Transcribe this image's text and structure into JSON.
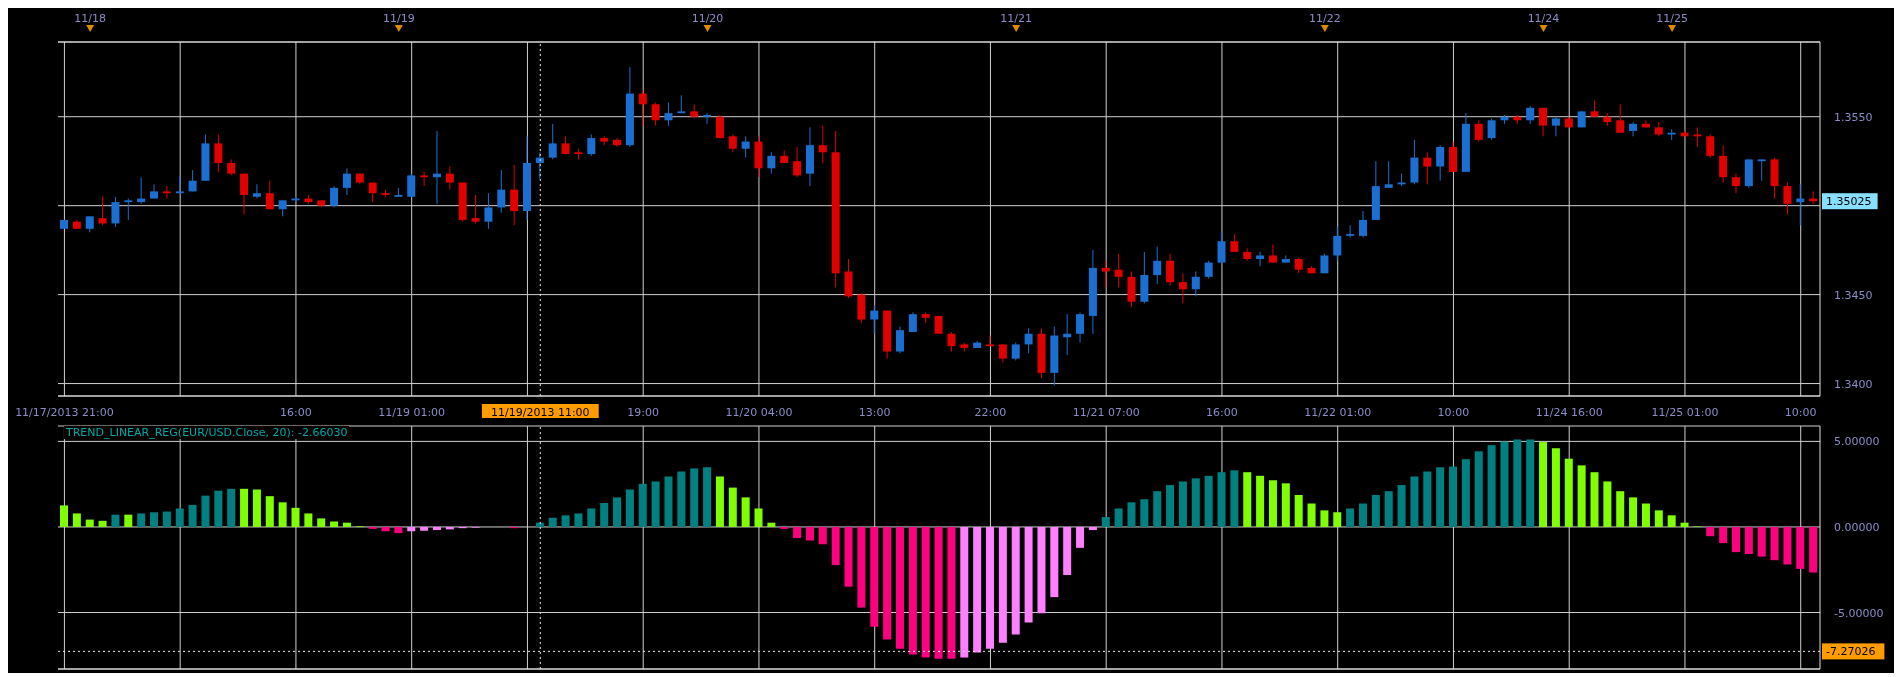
{
  "chart_data": [
    {
      "type": "candlestick",
      "categories": [
        "11/17/2013 21:00",
        null,
        null,
        null,
        null,
        null,
        null,
        null,
        null,
        null,
        null,
        null,
        null,
        null,
        null,
        null,
        null,
        null,
        "16:00",
        null,
        null,
        null,
        null,
        null,
        null,
        null,
        null,
        "11/19 01:00",
        null,
        null,
        null,
        null,
        null,
        null,
        null,
        null,
        null,
        "11/19/2013 11:00",
        null,
        null,
        null,
        null,
        null,
        null,
        null,
        "19:00",
        null,
        null,
        null,
        null,
        null,
        null,
        null,
        null,
        "11/20 04:00",
        null,
        null,
        null,
        null,
        null,
        null,
        null,
        null,
        "13:00",
        null,
        null,
        null,
        null,
        null,
        null,
        null,
        null,
        "22:00",
        null,
        null,
        null,
        null,
        null,
        null,
        null,
        null,
        "11/21 07:00",
        null,
        null,
        null,
        null,
        null,
        null,
        null,
        null,
        "16:00",
        null,
        null,
        null,
        null,
        null,
        null,
        null,
        null,
        "11/22 01:00",
        null,
        null,
        null,
        null,
        null,
        null,
        null,
        null,
        "10:00",
        null,
        null,
        null,
        null,
        null,
        null,
        null,
        null,
        "11/24 16:00",
        null,
        null,
        null,
        null,
        null,
        null,
        null,
        null,
        "11/25 01:00",
        null,
        null,
        null,
        null,
        null,
        null,
        null,
        null,
        "10:00",
        null
      ],
      "ohlc": [
        [
          1.3487,
          1.3492,
          1.3487,
          1.3492
        ],
        [
          1.3491,
          1.3492,
          1.3487,
          1.3487
        ],
        [
          1.3487,
          1.3494,
          1.3485,
          1.3494
        ],
        [
          1.3493,
          1.3505,
          1.3489,
          1.349
        ],
        [
          1.349,
          1.3505,
          1.3488,
          1.3502
        ],
        [
          1.3502,
          1.3504,
          1.3492,
          1.3503
        ],
        [
          1.3502,
          1.3516,
          1.3501,
          1.3504
        ],
        [
          1.3504,
          1.3512,
          1.3504,
          1.3508
        ],
        [
          1.3508,
          1.3511,
          1.3504,
          1.3507
        ],
        [
          1.3507,
          1.3517,
          1.3507,
          1.3508
        ],
        [
          1.3508,
          1.352,
          1.3508,
          1.3514
        ],
        [
          1.3514,
          1.354,
          1.3514,
          1.3535
        ],
        [
          1.3535,
          1.354,
          1.3519,
          1.3524
        ],
        [
          1.3524,
          1.3526,
          1.3517,
          1.3518
        ],
        [
          1.3518,
          1.3518,
          1.3495,
          1.3506
        ],
        [
          1.3505,
          1.3512,
          1.3504,
          1.3507
        ],
        [
          1.3507,
          1.3514,
          1.3498,
          1.3498
        ],
        [
          1.3498,
          1.3503,
          1.3494,
          1.3503
        ],
        [
          1.3503,
          1.3505,
          1.3502,
          1.3504
        ],
        [
          1.3504,
          1.3506,
          1.3501,
          1.3502
        ],
        [
          1.3503,
          1.3503,
          1.3499,
          1.35
        ],
        [
          1.35,
          1.3511,
          1.3499,
          1.351
        ],
        [
          1.351,
          1.3521,
          1.3506,
          1.3518
        ],
        [
          1.3518,
          1.3518,
          1.3512,
          1.3513
        ],
        [
          1.3513,
          1.3513,
          1.3502,
          1.3507
        ],
        [
          1.3507,
          1.3509,
          1.3505,
          1.3506
        ],
        [
          1.3505,
          1.351,
          1.3505,
          1.3506
        ],
        [
          1.3505,
          1.3518,
          1.3505,
          1.3517
        ],
        [
          1.3517,
          1.3519,
          1.3511,
          1.3516
        ],
        [
          1.3516,
          1.3542,
          1.3501,
          1.3518
        ],
        [
          1.3518,
          1.3522,
          1.3509,
          1.3513
        ],
        [
          1.3513,
          1.3513,
          1.3491,
          1.3492
        ],
        [
          1.3493,
          1.3506,
          1.349,
          1.3491
        ],
        [
          1.3491,
          1.3507,
          1.3487,
          1.3499
        ],
        [
          1.3499,
          1.352,
          1.3496,
          1.3509
        ],
        [
          1.3509,
          1.3523,
          1.3489,
          1.3497
        ],
        [
          1.3497,
          1.3539,
          1.3492,
          1.3524
        ],
        [
          1.3524,
          1.353,
          1.3515,
          1.3527
        ],
        [
          1.3527,
          1.3546,
          1.3526,
          1.3535
        ],
        [
          1.3535,
          1.3539,
          1.3529,
          1.3529
        ],
        [
          1.353,
          1.3532,
          1.3526,
          1.3529
        ],
        [
          1.3529,
          1.354,
          1.3528,
          1.3538
        ],
        [
          1.3538,
          1.3539,
          1.3534,
          1.3536
        ],
        [
          1.3537,
          1.3538,
          1.3533,
          1.3534
        ],
        [
          1.3534,
          1.3578,
          1.3533,
          1.3563
        ],
        [
          1.3563,
          1.3565,
          1.3545,
          1.3557
        ],
        [
          1.3557,
          1.3558,
          1.3545,
          1.3548
        ],
        [
          1.3548,
          1.3558,
          1.3545,
          1.3552
        ],
        [
          1.3552,
          1.3562,
          1.3552,
          1.3553
        ],
        [
          1.3553,
          1.3557,
          1.3549,
          1.355
        ],
        [
          1.355,
          1.3552,
          1.3546,
          1.3551
        ],
        [
          1.355,
          1.3551,
          1.3538,
          1.3538
        ],
        [
          1.3539,
          1.354,
          1.353,
          1.3532
        ],
        [
          1.3532,
          1.3539,
          1.3527,
          1.3536
        ],
        [
          1.3536,
          1.3539,
          1.3516,
          1.3521
        ],
        [
          1.3521,
          1.353,
          1.3518,
          1.3528
        ],
        [
          1.3528,
          1.3531,
          1.3524,
          1.3524
        ],
        [
          1.3525,
          1.3533,
          1.3516,
          1.3517
        ],
        [
          1.3518,
          1.3544,
          1.3511,
          1.3534
        ],
        [
          1.3534,
          1.3545,
          1.3524,
          1.353
        ],
        [
          1.353,
          1.3542,
          1.3454,
          1.3462
        ],
        [
          1.3463,
          1.347,
          1.3448,
          1.3449
        ],
        [
          1.345,
          1.3451,
          1.3434,
          1.3436
        ],
        [
          1.3436,
          1.3444,
          1.3428,
          1.3441
        ],
        [
          1.3441,
          1.3441,
          1.3414,
          1.3418
        ],
        [
          1.3418,
          1.3432,
          1.3417,
          1.343
        ],
        [
          1.3429,
          1.344,
          1.3429,
          1.3439
        ],
        [
          1.3439,
          1.344,
          1.3434,
          1.3437
        ],
        [
          1.3438,
          1.3438,
          1.3428,
          1.3428
        ],
        [
          1.3428,
          1.3429,
          1.3418,
          1.3421
        ],
        [
          1.3422,
          1.3423,
          1.3418,
          1.342
        ],
        [
          1.342,
          1.3424,
          1.342,
          1.3423
        ],
        [
          1.3422,
          1.3427,
          1.3421,
          1.3421
        ],
        [
          1.3422,
          1.3422,
          1.3412,
          1.3414
        ],
        [
          1.3414,
          1.3423,
          1.3413,
          1.3422
        ],
        [
          1.3422,
          1.3431,
          1.3417,
          1.3428
        ],
        [
          1.3428,
          1.3431,
          1.3403,
          1.3406
        ],
        [
          1.3406,
          1.3432,
          1.3399,
          1.3427
        ],
        [
          1.3426,
          1.3439,
          1.3416,
          1.3428
        ],
        [
          1.3428,
          1.344,
          1.3423,
          1.3439
        ],
        [
          1.3438,
          1.3475,
          1.3428,
          1.3465
        ],
        [
          1.3465,
          1.3469,
          1.3454,
          1.3463
        ],
        [
          1.3464,
          1.3473,
          1.3454,
          1.346
        ],
        [
          1.346,
          1.3463,
          1.3443,
          1.3446
        ],
        [
          1.3446,
          1.3474,
          1.3445,
          1.3461
        ],
        [
          1.3461,
          1.3477,
          1.3456,
          1.3469
        ],
        [
          1.3469,
          1.3473,
          1.3455,
          1.3457
        ],
        [
          1.3457,
          1.3462,
          1.3445,
          1.3453
        ],
        [
          1.3453,
          1.3463,
          1.3449,
          1.346
        ],
        [
          1.346,
          1.3469,
          1.3459,
          1.3468
        ],
        [
          1.3468,
          1.3485,
          1.3467,
          1.348
        ],
        [
          1.348,
          1.3484,
          1.3474,
          1.3474
        ],
        [
          1.3474,
          1.3476,
          1.3469,
          1.347
        ],
        [
          1.347,
          1.3474,
          1.3466,
          1.3472
        ],
        [
          1.3472,
          1.3478,
          1.3468,
          1.3468
        ],
        [
          1.3468,
          1.3472,
          1.3468,
          1.347
        ],
        [
          1.347,
          1.3471,
          1.3462,
          1.3464
        ],
        [
          1.3465,
          1.3466,
          1.3462,
          1.3462
        ],
        [
          1.3462,
          1.3473,
          1.3462,
          1.3472
        ],
        [
          1.3472,
          1.3488,
          1.3469,
          1.3483
        ],
        [
          1.3483,
          1.3489,
          1.3482,
          1.3484
        ],
        [
          1.3483,
          1.3497,
          1.3482,
          1.3492
        ],
        [
          1.3492,
          1.3525,
          1.3492,
          1.3511
        ],
        [
          1.351,
          1.3525,
          1.351,
          1.3512
        ],
        [
          1.3512,
          1.3518,
          1.3511,
          1.3513
        ],
        [
          1.3513,
          1.3537,
          1.3512,
          1.3527
        ],
        [
          1.3527,
          1.353,
          1.3512,
          1.3522
        ],
        [
          1.3522,
          1.3534,
          1.3514,
          1.3533
        ],
        [
          1.3533,
          1.3536,
          1.3519,
          1.3519
        ],
        [
          1.3519,
          1.3552,
          1.3519,
          1.3546
        ],
        [
          1.3546,
          1.3548,
          1.3536,
          1.3537
        ],
        [
          1.3538,
          1.3549,
          1.3537,
          1.3548
        ],
        [
          1.3548,
          1.3551,
          1.3546,
          1.355
        ],
        [
          1.355,
          1.3551,
          1.3546,
          1.3548
        ],
        [
          1.3548,
          1.3556,
          1.3546,
          1.3555
        ],
        [
          1.3555,
          1.3555,
          1.3539,
          1.3545
        ],
        [
          1.3545,
          1.355,
          1.3539,
          1.3549
        ],
        [
          1.3549,
          1.355,
          1.3544,
          1.3544
        ],
        [
          1.3544,
          1.3553,
          1.3544,
          1.3553
        ],
        [
          1.3553,
          1.3559,
          1.355,
          1.355
        ],
        [
          1.355,
          1.3552,
          1.3545,
          1.3547
        ],
        [
          1.3548,
          1.3557,
          1.3541,
          1.3541
        ],
        [
          1.3542,
          1.3547,
          1.3539,
          1.3546
        ],
        [
          1.3546,
          1.3548,
          1.3544,
          1.3544
        ],
        [
          1.3544,
          1.3547,
          1.3539,
          1.354
        ],
        [
          1.354,
          1.3543,
          1.3537,
          1.3541
        ],
        [
          1.3541,
          1.3542,
          1.3539,
          1.3539
        ],
        [
          1.354,
          1.3544,
          1.3533,
          1.3539
        ],
        [
          1.3539,
          1.354,
          1.3527,
          1.3528
        ],
        [
          1.3528,
          1.3534,
          1.3513,
          1.3516
        ],
        [
          1.3516,
          1.3518,
          1.3507,
          1.3511
        ],
        [
          1.3511,
          1.3526,
          1.351,
          1.3526
        ],
        [
          1.3525,
          1.3526,
          1.3514,
          1.3526
        ],
        [
          1.3526,
          1.3527,
          1.3504,
          1.3511
        ],
        [
          1.3511,
          1.3513,
          1.3495,
          1.3501
        ],
        [
          1.3502,
          1.3512,
          1.3489,
          1.3504
        ],
        [
          1.3504,
          1.3508,
          1.3501,
          1.35025
        ]
      ],
      "colors": [
        "#1a6fd1",
        "#e00000",
        "#1a6fd1",
        "#e00000",
        "#1a6fd1",
        "#1a6fd1",
        "#1a6fd1",
        "#1a6fd1",
        "#e00000",
        "#1a6fd1",
        "#1a6fd1",
        "#1a6fd1",
        "#e00000",
        "#e00000",
        "#e00000",
        "#1a6fd1",
        "#e00000",
        "#1a6fd1",
        "#1a6fd1",
        "#e00000",
        "#e00000",
        "#1a6fd1",
        "#1a6fd1",
        "#e00000",
        "#e00000",
        "#e00000",
        "#1a6fd1",
        "#1a6fd1",
        "#e00000",
        "#1a6fd1",
        "#e00000",
        "#e00000",
        "#e00000",
        "#1a6fd1",
        "#1a6fd1",
        "#e00000",
        "#1a6fd1",
        "#1a6fd1",
        "#1a6fd1",
        "#e00000",
        "#e00000",
        "#1a6fd1",
        "#e00000",
        "#e00000",
        "#1a6fd1",
        "#e00000",
        "#e00000",
        "#1a6fd1",
        "#1a6fd1",
        "#e00000",
        "#1a6fd1",
        "#e00000",
        "#e00000",
        "#1a6fd1",
        "#e00000",
        "#1a6fd1",
        "#e00000",
        "#e00000",
        "#1a6fd1",
        "#e00000",
        "#e00000",
        "#e00000",
        "#e00000",
        "#1a6fd1",
        "#e00000",
        "#1a6fd1",
        "#1a6fd1",
        "#e00000",
        "#e00000",
        "#e00000",
        "#e00000",
        "#1a6fd1",
        "#e00000",
        "#e00000",
        "#1a6fd1",
        "#1a6fd1",
        "#e00000",
        "#1a6fd1",
        "#1a6fd1",
        "#1a6fd1",
        "#1a6fd1",
        "#e00000",
        "#e00000",
        "#e00000",
        "#1a6fd1",
        "#1a6fd1",
        "#e00000",
        "#e00000",
        "#1a6fd1",
        "#1a6fd1",
        "#1a6fd1",
        "#e00000",
        "#e00000",
        "#1a6fd1",
        "#e00000",
        "#1a6fd1",
        "#e00000",
        "#e00000",
        "#1a6fd1",
        "#1a6fd1",
        "#1a6fd1",
        "#1a6fd1",
        "#1a6fd1",
        "#1a6fd1",
        "#1a6fd1",
        "#1a6fd1",
        "#e00000",
        "#1a6fd1",
        "#e00000",
        "#1a6fd1",
        "#e00000",
        "#1a6fd1",
        "#1a6fd1",
        "#e00000",
        "#1a6fd1",
        "#e00000",
        "#1a6fd1",
        "#e00000",
        "#1a6fd1",
        "#e00000",
        "#e00000",
        "#e00000",
        "#1a6fd1",
        "#e00000",
        "#e00000",
        "#1a6fd1",
        "#e00000",
        "#e00000",
        "#e00000",
        "#e00000",
        "#e00000",
        "#1a6fd1",
        "#1a6fd1",
        "#e00000",
        "#e00000",
        "#1a6fd1",
        "#e00000"
      ],
      "ylim": [
        1.3393,
        1.3592
      ],
      "yticks": [
        {
          "value": 1.34,
          "label": "1.3400"
        },
        {
          "value": 1.345,
          "label": "1.3450"
        },
        {
          "value": 1.35,
          "label": null
        },
        {
          "value": 1.355,
          "label": "1.3550"
        }
      ],
      "grid": true,
      "ref_lines": [
        {
          "axis": "x",
          "value": "11/19/2013 11:00",
          "line_style": "dotted"
        }
      ],
      "annotations": [
        "11/18",
        "11/19",
        "11/20",
        "11/21",
        "11/22",
        "11/24",
        "11/25",
        "1.35025"
      ]
    },
    {
      "type": "bar",
      "title": "TREND_LINEAR_REG(EUR/USD.Close, 20): -2.66030",
      "categories": [
        "11/17/2013 21:00",
        null,
        null,
        null,
        null,
        null,
        null,
        null,
        null,
        null,
        null,
        null,
        null,
        null,
        null,
        null,
        null,
        null,
        "16:00",
        null,
        null,
        null,
        null,
        null,
        null,
        null,
        null,
        "11/19 01:00",
        null,
        null,
        null,
        null,
        null,
        null,
        null,
        null,
        null,
        "11/19/2013 11:00",
        null,
        null,
        null,
        null,
        null,
        null,
        null,
        "19:00",
        null,
        null,
        null,
        null,
        null,
        null,
        null,
        null,
        "11/20 04:00",
        null,
        null,
        null,
        null,
        null,
        null,
        null,
        null,
        "13:00",
        null,
        null,
        null,
        null,
        null,
        null,
        null,
        null,
        "22:00",
        null,
        null,
        null,
        null,
        null,
        null,
        null,
        null,
        "11/21 07:00",
        null,
        null,
        null,
        null,
        null,
        null,
        null,
        null,
        "16:00",
        null,
        null,
        null,
        null,
        null,
        null,
        null,
        null,
        "11/22 01:00",
        null,
        null,
        null,
        null,
        null,
        null,
        null,
        null,
        "10:00",
        null,
        null,
        null,
        null,
        null,
        null,
        null,
        null,
        "11/24 16:00",
        null,
        null,
        null,
        null,
        null,
        null,
        null,
        null,
        "11/25 01:00",
        null,
        null,
        null,
        null,
        null,
        null,
        null,
        null,
        "10:00",
        null
      ],
      "values": [
        1.26,
        0.79,
        0.43,
        0.36,
        0.72,
        0.72,
        0.79,
        0.86,
        0.9,
        1.08,
        1.29,
        1.83,
        2.12,
        2.23,
        2.23,
        2.19,
        1.8,
        1.44,
        1.12,
        0.79,
        0.5,
        0.32,
        0.25,
        0.04,
        -0.11,
        -0.25,
        -0.36,
        -0.25,
        -0.22,
        -0.18,
        -0.14,
        -0.07,
        -0.04,
        null,
        null,
        -0.07,
        null,
        0.25,
        0.54,
        0.68,
        0.79,
        1.08,
        1.4,
        1.73,
        2.19,
        2.52,
        2.66,
        2.95,
        3.24,
        3.42,
        3.49,
        2.95,
        2.3,
        1.73,
        1.08,
        0.25,
        -0.11,
        -0.65,
        -0.79,
        -1.01,
        -2.23,
        -3.49,
        -4.71,
        -5.83,
        -6.58,
        -7.12,
        -7.45,
        -7.63,
        -7.7,
        -7.7,
        -7.63,
        -7.34,
        -7.12,
        -6.76,
        -6.29,
        -5.58,
        -5.04,
        -4.1,
        -2.81,
        -1.22,
        -0.18,
        0.58,
        1.08,
        1.44,
        1.62,
        2.09,
        2.45,
        2.66,
        2.84,
        2.99,
        3.2,
        3.31,
        3.2,
        2.99,
        2.73,
        2.55,
        1.87,
        1.37,
        0.97,
        0.86,
        1.08,
        1.37,
        1.87,
        2.09,
        2.45,
        2.95,
        3.24,
        3.49,
        3.53,
        3.96,
        4.42,
        4.78,
        5.0,
        5.11,
        5.11,
        4.96,
        4.6,
        3.99,
        3.6,
        3.2,
        2.66,
        2.09,
        1.73,
        1.37,
        0.97,
        0.68,
        0.25,
        0.03,
        -0.54,
        -0.94,
        -1.47,
        -1.58,
        -1.73,
        -1.94,
        -2.19,
        -2.45,
        -2.66
      ],
      "colors": [
        "#80ff00",
        "#80ff00",
        "#80ff00",
        "#80ff00",
        "#008080",
        "#80ff00",
        "#008080",
        "#008080",
        "#008080",
        "#008080",
        "#008080",
        "#008080",
        "#008080",
        "#008080",
        "#80ff00",
        "#80ff00",
        "#80ff00",
        "#80ff00",
        "#80ff00",
        "#80ff00",
        "#80ff00",
        "#80ff00",
        "#80ff00",
        "#80ff00",
        "#ff0080",
        "#ff0080",
        "#ff0080",
        "#ff80ff",
        "#ff80ff",
        "#ff80ff",
        "#ff80ff",
        "#ff80ff",
        "#ff80ff",
        "#ff0080",
        "#ff0080",
        "#ff0080",
        "#ff0080",
        "#008080",
        "#008080",
        "#008080",
        "#008080",
        "#008080",
        "#008080",
        "#008080",
        "#008080",
        "#008080",
        "#008080",
        "#008080",
        "#008080",
        "#008080",
        "#008080",
        "#80ff00",
        "#80ff00",
        "#80ff00",
        "#80ff00",
        "#80ff00",
        "#ff0080",
        "#ff0080",
        "#ff0080",
        "#ff0080",
        "#ff0080",
        "#ff0080",
        "#ff0080",
        "#ff0080",
        "#ff0080",
        "#ff0080",
        "#ff0080",
        "#ff0080",
        "#ff0080",
        "#ff0080",
        "#ff80ff",
        "#ff80ff",
        "#ff80ff",
        "#ff80ff",
        "#ff80ff",
        "#ff80ff",
        "#ff80ff",
        "#ff80ff",
        "#ff80ff",
        "#ff80ff",
        "#ff80ff",
        "#008080",
        "#008080",
        "#008080",
        "#008080",
        "#008080",
        "#008080",
        "#008080",
        "#008080",
        "#008080",
        "#008080",
        "#008080",
        "#80ff00",
        "#80ff00",
        "#80ff00",
        "#80ff00",
        "#80ff00",
        "#80ff00",
        "#80ff00",
        "#80ff00",
        "#008080",
        "#008080",
        "#008080",
        "#008080",
        "#008080",
        "#008080",
        "#008080",
        "#008080",
        "#008080",
        "#008080",
        "#008080",
        "#008080",
        "#008080",
        "#008080",
        "#008080",
        "#80ff00",
        "#80ff00",
        "#80ff00",
        "#80ff00",
        "#80ff00",
        "#80ff00",
        "#80ff00",
        "#80ff00",
        "#80ff00",
        "#80ff00",
        "#80ff00",
        "#80ff00",
        "#80ff00",
        "#ff0080",
        "#ff0080",
        "#ff0080",
        "#ff0080",
        "#ff0080",
        "#ff0080",
        "#ff0080",
        "#ff0080",
        "#ff0080"
      ],
      "ylim": [
        -8.3,
        5.9
      ],
      "yticks": [
        {
          "value": -5,
          "label": "-5.00000"
        },
        {
          "value": 0,
          "label": "0.00000"
        },
        {
          "value": 5,
          "label": "5.00000"
        }
      ],
      "grid": true,
      "tick_labels": "y",
      "ref_lines": [
        {
          "axis": "x",
          "value": "11/19/2013 11:00",
          "line_style": "dotted"
        },
        {
          "axis": "y",
          "value": -7.27026,
          "label": "-7.27026",
          "line_style": "dotted"
        }
      ]
    }
  ]
}
